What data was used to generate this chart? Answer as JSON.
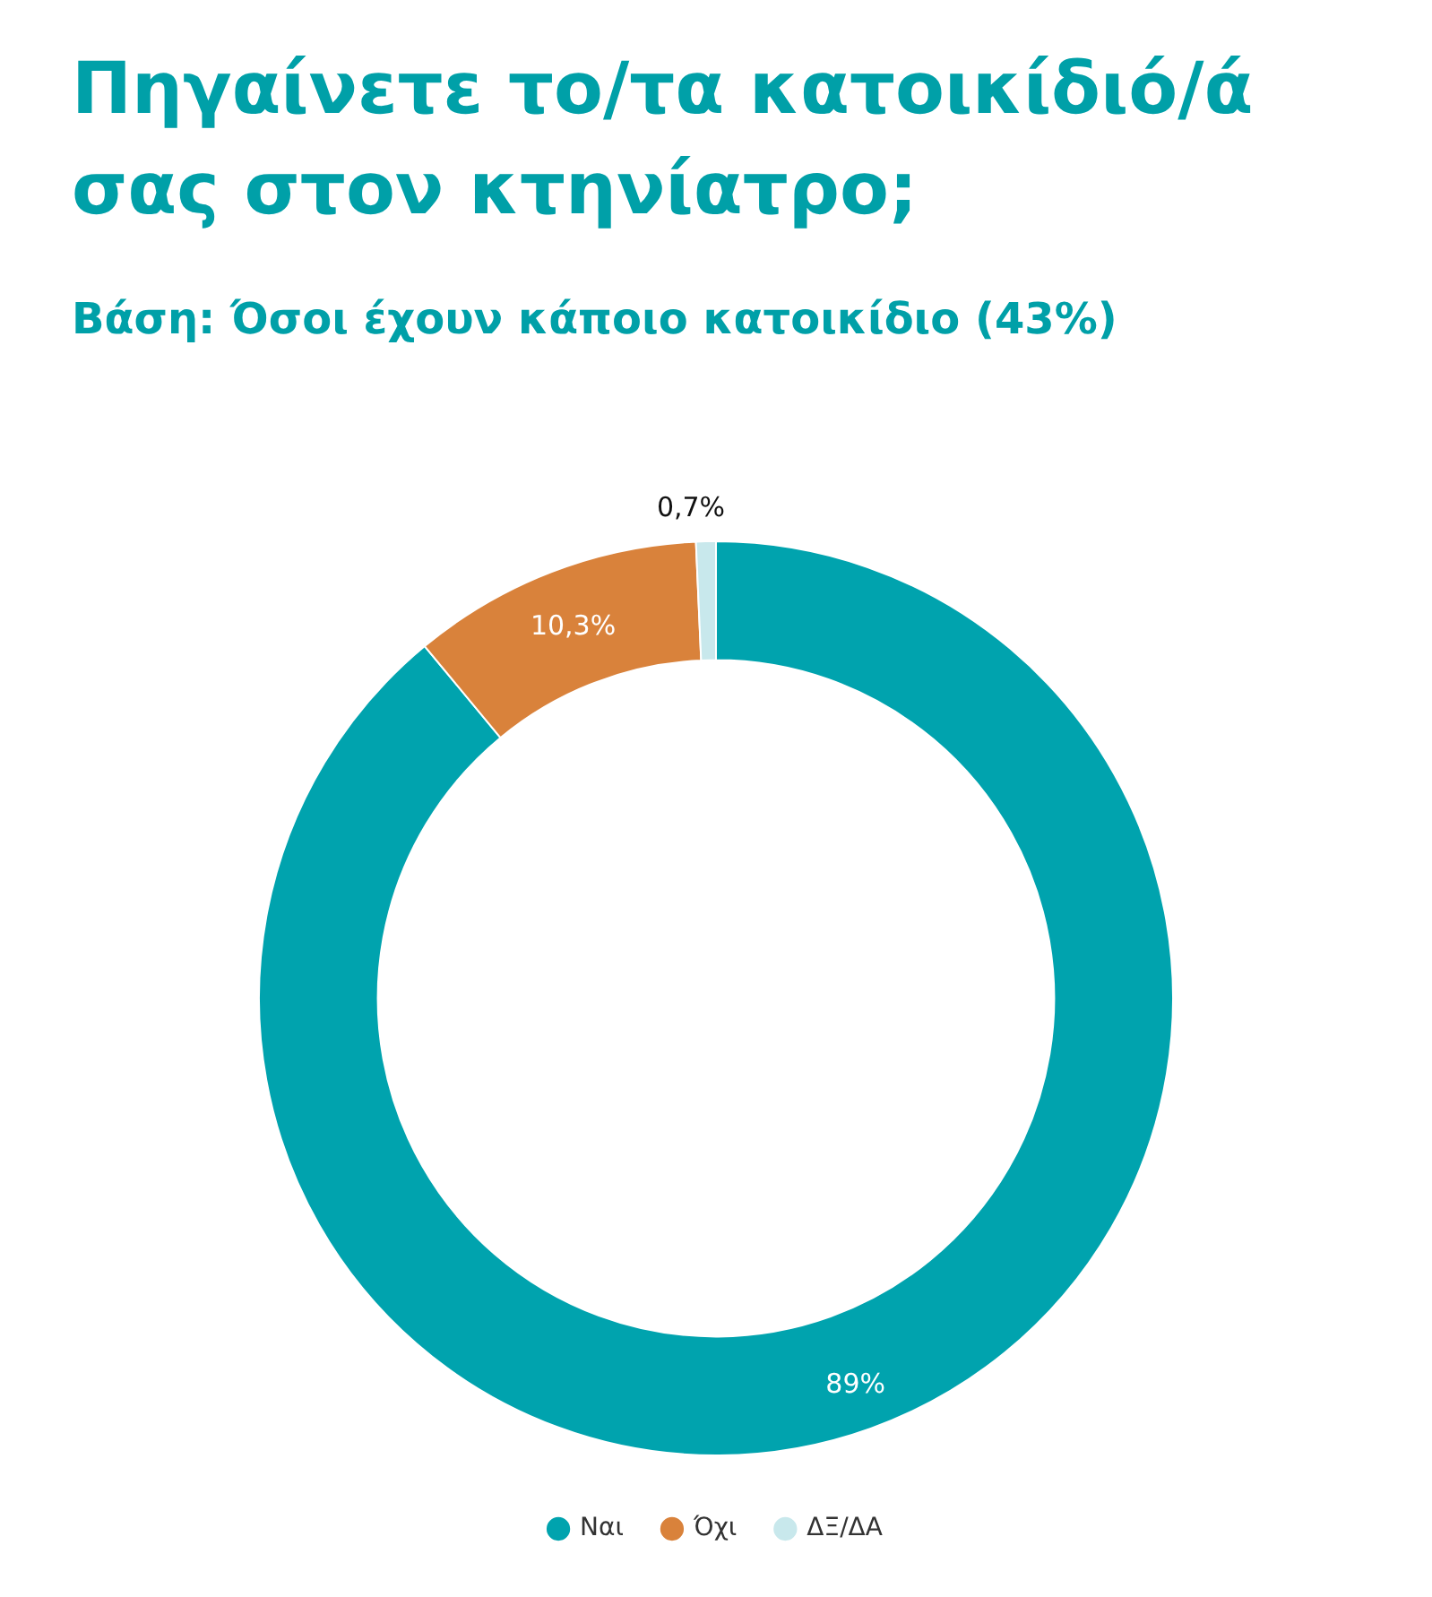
{
  "chart_data": {
    "type": "donut",
    "title": "Πηγαίνετε το/τα κατοικίδιό/ά σας στον κτηνίατρο;",
    "subtitle": "Βάση: Όσοι έχουν κάποιο κατοικίδιο (43%)",
    "categories": [
      "Ναι",
      "Όχι",
      "ΔΞ/ΔΑ"
    ],
    "values": [
      89,
      10.3,
      0.7
    ],
    "colors": [
      "#00a3ae",
      "#d9823b",
      "#c8e8ec"
    ],
    "value_labels": [
      "89%",
      "10,3%",
      "0,7%"
    ],
    "legend": "bottom"
  }
}
